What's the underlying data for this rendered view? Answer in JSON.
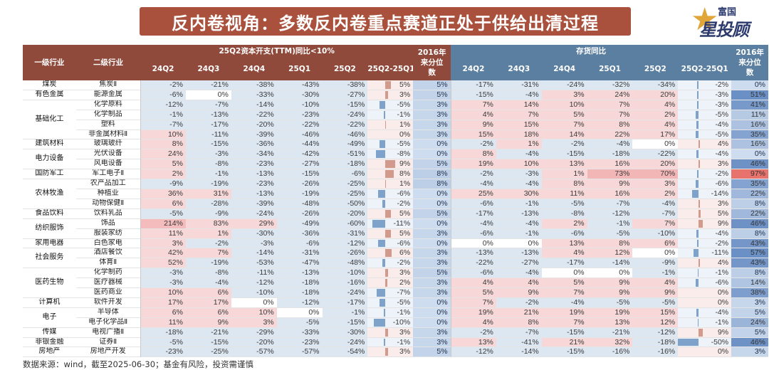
{
  "title": "反内卷视角：多数反内卷重点赛道正处于供给出清过程",
  "logo": {
    "top": "富国",
    "main": "星投顾"
  },
  "footer": "数据来源：wind，截至2025-06-30；基金有风险，投资需谨慎",
  "colors": {
    "header_capex": "#8f4a3b",
    "header_inventory": "#5b7fa0",
    "positive": "#f7d7d7",
    "negative": "#dce7f2",
    "bar_red": "#c9897a",
    "bar_blue": "#5d88bf",
    "highlight_red": "#e8736d"
  },
  "chart_data": {
    "type": "table",
    "headers": {
      "level1": "一级行业",
      "level2": "二级行业",
      "group_capex": "25Q2资本开支(TTM)同比<10%",
      "group_inventory": "存货同比",
      "periods": [
        "24Q2",
        "24Q3",
        "24Q4",
        "25Q1",
        "25Q2",
        "25Q2-25Q1",
        "2016年来分位数"
      ]
    },
    "rows": [
      {
        "l1": "煤炭",
        "l2": "焦炭Ⅱ",
        "capex": [
          "-2%",
          "-21%",
          "-38%",
          "-43%",
          "-38%",
          "5%",
          "5%"
        ],
        "inv": [
          "-17%",
          "-31%",
          "-24%",
          "-32%",
          "-34%",
          "-2%",
          "0%"
        ]
      },
      {
        "l1": "有色金属",
        "l2": "能源金属",
        "capex": [
          "-6%",
          "0%",
          "-33%",
          "-30%",
          "-27%",
          "3%",
          "5%"
        ],
        "inv": [
          "-15%",
          "-4%",
          "3%",
          "24%",
          "20%",
          "-3%",
          "51%"
        ]
      },
      {
        "l1": "",
        "l2": "化学原料",
        "capex": [
          "-12%",
          "-7%",
          "-14%",
          "-10%",
          "-15%",
          "-5%",
          "3%"
        ],
        "inv": [
          "7%",
          "14%",
          "10%",
          "7%",
          "4%",
          "-3%",
          "41%"
        ]
      },
      {
        "l1": "基础化工",
        "l2": "化学制品",
        "capex": [
          "-1%",
          "-13%",
          "-22%",
          "-23%",
          "-24%",
          "-1%",
          "3%"
        ],
        "inv": [
          "4%",
          "7%",
          "5%",
          "7%",
          "2%",
          "-5%",
          "11%"
        ]
      },
      {
        "l1": "",
        "l2": "塑料",
        "capex": [
          "-7%",
          "-17%",
          "-20%",
          "-22%",
          "-22%",
          "1%",
          "3%"
        ],
        "inv": [
          "9%",
          "15%",
          "7%",
          "8%",
          "4%",
          "-4%",
          "16%"
        ]
      },
      {
        "l1": "",
        "l2": "非金属材料Ⅱ",
        "capex": [
          "10%",
          "-11%",
          "-39%",
          "-46%",
          "-46%",
          "0%",
          "3%"
        ],
        "inv": [
          "15%",
          "18%",
          "14%",
          "22%",
          "17%",
          "-5%",
          "35%"
        ]
      },
      {
        "l1": "建筑材料",
        "l2": "玻璃玻纤",
        "capex": [
          "8%",
          "-15%",
          "-36%",
          "-44%",
          "-49%",
          "-5%",
          "0%"
        ],
        "inv": [
          "-2%",
          "1%",
          "-2%",
          "-4%",
          "0%",
          "4%",
          "16%"
        ]
      },
      {
        "l1": "电力设备",
        "l2": "光伏设备",
        "capex": [
          "24%",
          "-3%",
          "-34%",
          "-42%",
          "-51%",
          "-8%",
          "0%"
        ],
        "inv": [
          "8%",
          "-4%",
          "-15%",
          "-18%",
          "-22%",
          "-4%",
          "0%"
        ]
      },
      {
        "l1": "",
        "l2": "风电设备",
        "capex": [
          "5%",
          "-8%",
          "-23%",
          "-27%",
          "-18%",
          "9%",
          "5%"
        ],
        "inv": [
          "19%",
          "10%",
          "13%",
          "16%",
          "20%",
          "3%",
          "46%"
        ]
      },
      {
        "l1": "国防军工",
        "l2": "军工电子Ⅱ",
        "capex": [
          "2%",
          "-1%",
          "-13%",
          "-15%",
          "-6%",
          "8%",
          "8%"
        ],
        "inv": [
          "-2%",
          "-3%",
          "1%",
          "73%",
          "70%",
          "-2%",
          "97%"
        ]
      },
      {
        "l1": "",
        "l2": "农产品加工",
        "capex": [
          "-9%",
          "-19%",
          "-23%",
          "-26%",
          "-25%",
          "1%",
          "8%"
        ],
        "inv": [
          "-4%",
          "-4%",
          "8%",
          "9%",
          "3%",
          "-6%",
          "35%"
        ]
      },
      {
        "l1": "农林牧渔",
        "l2": "种植业",
        "capex": [
          "36%",
          "31%",
          "-13%",
          "-19%",
          "-25%",
          "-6%",
          "0%"
        ],
        "inv": [
          "25%",
          "30%",
          "11%",
          "16%",
          "2%",
          "-14%",
          "22%"
        ]
      },
      {
        "l1": "",
        "l2": "动物保健Ⅱ",
        "capex": [
          "6%",
          "-28%",
          "-39%",
          "-48%",
          "-50%",
          "-2%",
          "0%"
        ],
        "inv": [
          "-6%",
          "-1%",
          "-5%",
          "-7%",
          "-4%",
          "3%",
          "8%"
        ]
      },
      {
        "l1": "食品饮料",
        "l2": "饮料乳品",
        "capex": [
          "-5%",
          "-9%",
          "-24%",
          "-26%",
          "-20%",
          "5%",
          "5%"
        ],
        "inv": [
          "-17%",
          "-13%",
          "-8%",
          "-12%",
          "-7%",
          "5%",
          "22%"
        ]
      },
      {
        "l1": "纺织服饰",
        "l2": "饰品",
        "capex": [
          "214%",
          "83%",
          "29%",
          "-49%",
          "-60%",
          "-11%",
          "0%"
        ],
        "inv": [
          "-4%",
          "-4%",
          "2%",
          "-1%",
          "7%",
          "9%",
          "46%"
        ]
      },
      {
        "l1": "",
        "l2": "服装家纺",
        "capex": [
          "11%",
          "1%",
          "-30%",
          "-36%",
          "-31%",
          "5%",
          "3%"
        ],
        "inv": [
          "-6%",
          "-1%",
          "-6%",
          "-5%",
          "-10%",
          "-4%",
          "8%"
        ]
      },
      {
        "l1": "家用电器",
        "l2": "白色家电",
        "capex": [
          "3%",
          "-2%",
          "-3%",
          "-6%",
          "-12%",
          "-6%",
          "0%"
        ],
        "inv": [
          "0%",
          "0%",
          "13%",
          "8%",
          "6%",
          "-2%",
          "43%"
        ]
      },
      {
        "l1": "社会服务",
        "l2": "酒店餐饮",
        "capex": [
          "42%",
          "7%",
          "-14%",
          "-31%",
          "-26%",
          "6%",
          "3%"
        ],
        "inv": [
          "-13%",
          "-13%",
          "4%",
          "12%",
          "0%",
          "-11%",
          "57%"
        ]
      },
      {
        "l1": "",
        "l2": "体育Ⅱ",
        "capex": [
          "52%",
          "-19%",
          "-53%",
          "-47%",
          "-48%",
          "-2%",
          "3%"
        ],
        "inv": [
          "-22%",
          "-27%",
          "-17%",
          "-14%",
          "-9%",
          "4%",
          "43%"
        ]
      },
      {
        "l1": "",
        "l2": "化学制药",
        "capex": [
          "-3%",
          "-8%",
          "-11%",
          "-13%",
          "-10%",
          "3%",
          "5%"
        ],
        "inv": [
          "-6%",
          "-4%",
          "0%",
          "0%",
          "-1%",
          "-1%",
          "8%"
        ]
      },
      {
        "l1": "医药生物",
        "l2": "医疗器械",
        "capex": [
          "-3%",
          "-4%",
          "-12%",
          "-18%",
          "-16%",
          "2%",
          "3%"
        ],
        "inv": [
          "4%",
          "4%",
          "5%",
          "9%",
          "4%",
          "-6%",
          "14%"
        ]
      },
      {
        "l1": "",
        "l2": "医药商业",
        "capex": [
          "10%",
          "6%",
          "-10%",
          "-18%",
          "-24%",
          "-7%",
          "3%"
        ],
        "inv": [
          "5%",
          "9%",
          "7%",
          "9%",
          "9%",
          "0%",
          "38%"
        ]
      },
      {
        "l1": "计算机",
        "l2": "软件开发",
        "capex": [
          "17%",
          "17%",
          "0%",
          "-12%",
          "-17%",
          "-5%",
          "0%"
        ],
        "inv": [
          "7%",
          "-2%",
          "-4%",
          "-5%",
          "-5%",
          "0%",
          "3%"
        ]
      },
      {
        "l1": "电子",
        "l2": "半导体",
        "capex": [
          "6%",
          "6%",
          "10%",
          "0%",
          "-1%",
          "-1%",
          "0%"
        ],
        "inv": [
          "19%",
          "21%",
          "19%",
          "19%",
          "15%",
          "-4%",
          "5%"
        ]
      },
      {
        "l1": "",
        "l2": "电子化学品Ⅱ",
        "capex": [
          "11%",
          "9%",
          "3%",
          "-5%",
          "-15%",
          "-10%",
          "0%"
        ],
        "inv": [
          "4%",
          "8%",
          "7%",
          "13%",
          "12%",
          "-1%",
          "24%"
        ]
      },
      {
        "l1": "传媒",
        "l2": "电视广播Ⅱ",
        "capex": [
          "-18%",
          "-21%",
          "-29%",
          "-33%",
          "-30%",
          "3%",
          "3%"
        ],
        "inv": [
          "-2%",
          "-7%",
          "-15%",
          "-21%",
          "-12%",
          "9%",
          "5%"
        ]
      },
      {
        "l1": "非银金融",
        "l2": "证券Ⅱ",
        "capex": [
          "-5%",
          "-15%",
          "-20%",
          "-23%",
          "-24%",
          "-1%",
          "3%"
        ],
        "inv": [
          "13%",
          "-41%",
          "21%",
          "32%",
          "-18%",
          "-50%",
          "46%"
        ]
      },
      {
        "l1": "房地产",
        "l2": "房地产开发",
        "capex": [
          "-23%",
          "-25%",
          "-57%",
          "-57%",
          "-54%",
          "3%",
          "5%"
        ],
        "inv": [
          "-12%",
          "-14%",
          "-15%",
          "-16%",
          "-16%",
          "0%",
          "3%"
        ]
      }
    ]
  }
}
